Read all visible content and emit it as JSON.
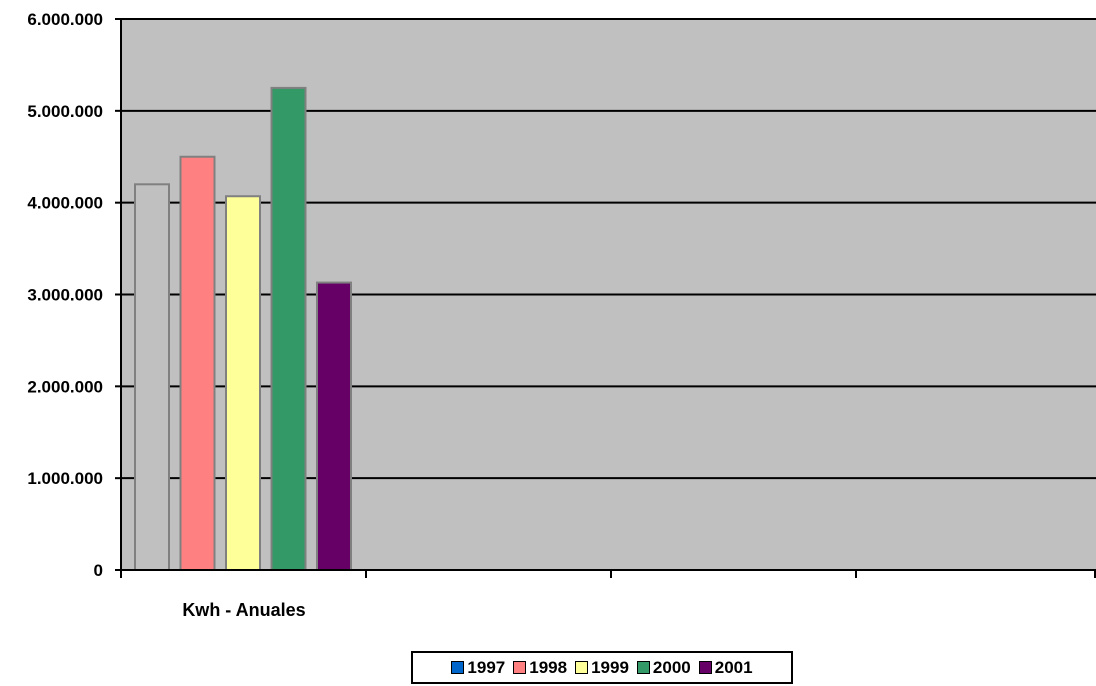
{
  "chart_data": {
    "type": "bar",
    "title": "",
    "xlabel": "",
    "ylabel": "",
    "categories": [
      "Kwh - Anuales"
    ],
    "ylim": [
      0,
      6000000
    ],
    "y_ticks": [
      "0",
      "1.000.000",
      "2.000.000",
      "3.000.000",
      "4.000.000",
      "5.000.000",
      "6.000.000"
    ],
    "grid": true,
    "legend_position": "bottom",
    "series": [
      {
        "name": "1997",
        "values": [
          4200000
        ],
        "color": "#c0c0c0",
        "legend_color": "#0066cc"
      },
      {
        "name": "1998",
        "values": [
          4500000
        ],
        "color": "#ff8080",
        "legend_color": "#ff8080"
      },
      {
        "name": "1999",
        "values": [
          4070000
        ],
        "color": "#ffff99",
        "legend_color": "#ffff99"
      },
      {
        "name": "2000",
        "values": [
          5250000
        ],
        "color": "#339966",
        "legend_color": "#339966"
      },
      {
        "name": "2001",
        "values": [
          3130000
        ],
        "color": "#660066",
        "legend_color": "#660066"
      }
    ],
    "plot_background": "#c0c0c0"
  }
}
